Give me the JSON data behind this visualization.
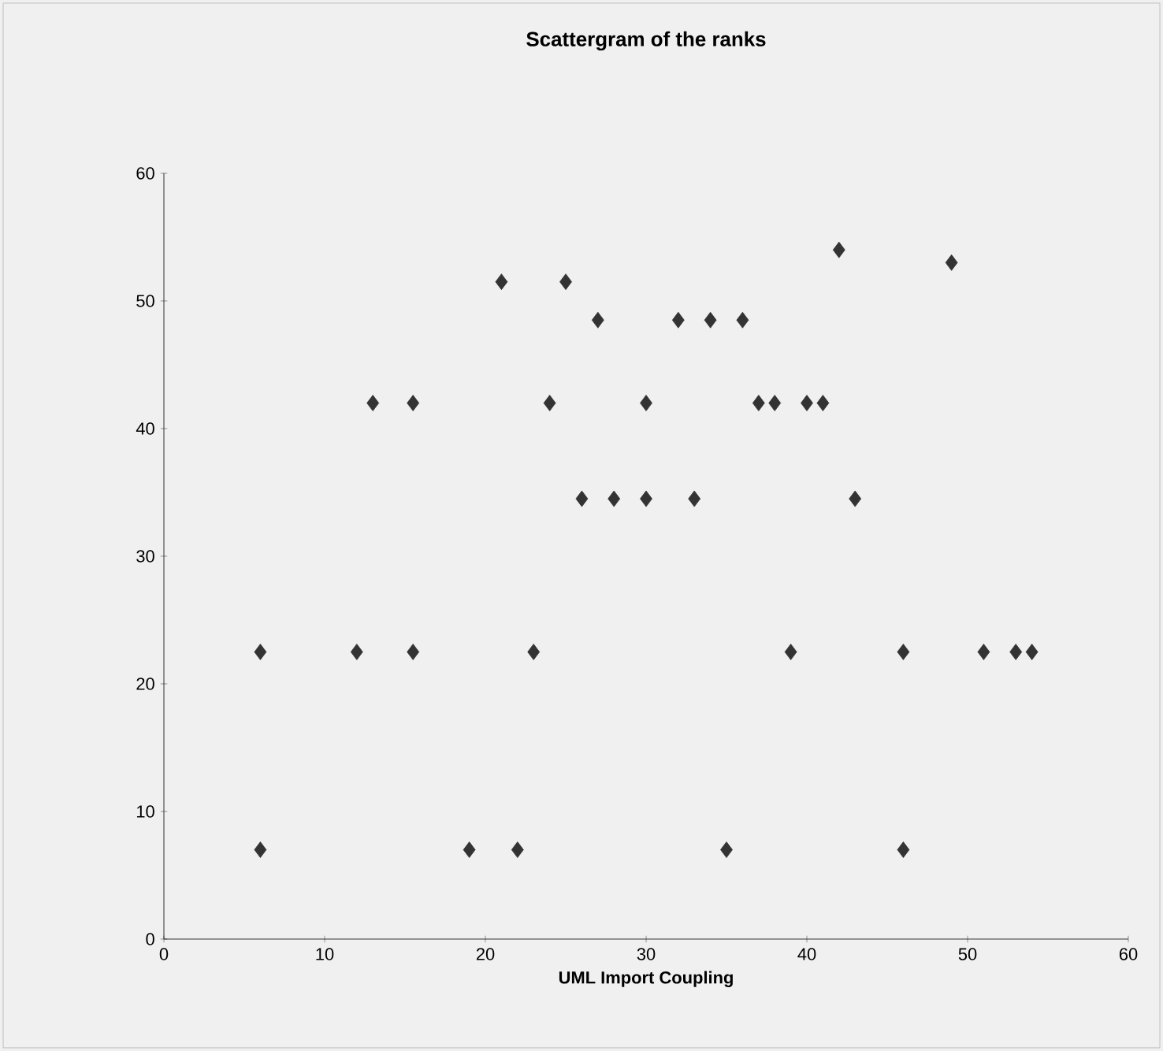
{
  "chart_data": {
    "type": "scatter",
    "title": "Scattergram of the ranks",
    "xlabel": "UML Import Coupling",
    "x": [
      6,
      6,
      12,
      13,
      15.5,
      15.5,
      19,
      21,
      22,
      23,
      24,
      25,
      26,
      27,
      28,
      30,
      30,
      32,
      33,
      34,
      35,
      36,
      37,
      38,
      39,
      40,
      41,
      42,
      43,
      46,
      46,
      49,
      51,
      53,
      54
    ],
    "values": [
      22.5,
      7,
      22.5,
      42,
      42,
      22.5,
      7,
      51.5,
      7,
      22.5,
      42,
      51.5,
      34.5,
      48.5,
      34.5,
      34.5,
      42,
      48.5,
      34.5,
      48.5,
      7,
      48.5,
      42,
      42,
      22.5,
      42,
      42,
      54,
      34.5,
      22.5,
      7,
      53,
      22.5,
      22.5,
      22.5
    ],
    "color": "#333333",
    "marker": "diamond",
    "xlim": [
      0,
      60
    ],
    "ylim": [
      0,
      60
    ],
    "xticks": [
      0,
      10,
      20,
      30,
      40,
      50,
      60
    ],
    "yticks": [
      0,
      10,
      20,
      30,
      40,
      50,
      60
    ]
  }
}
